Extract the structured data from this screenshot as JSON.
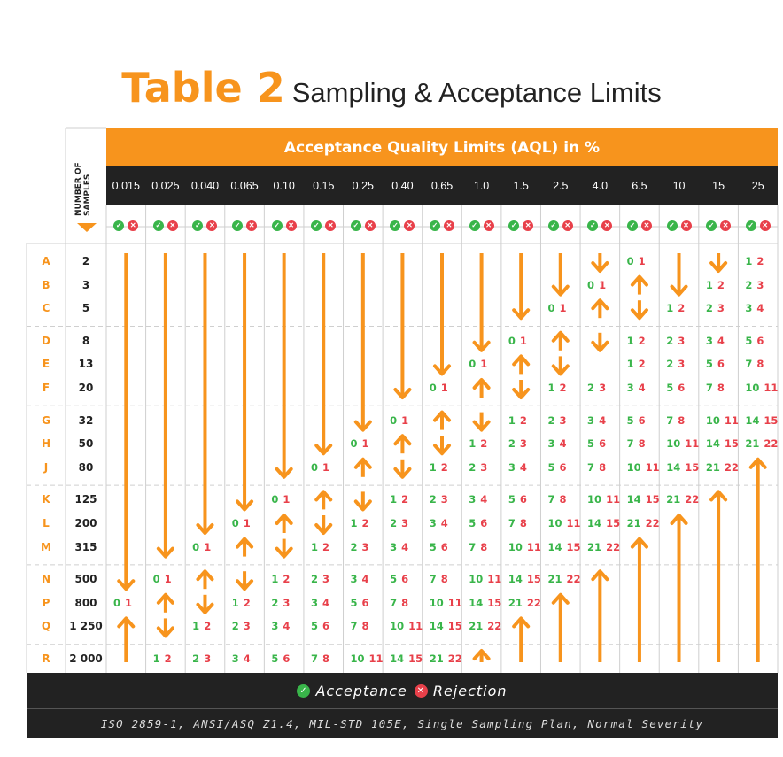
{
  "title": {
    "main": "Table 2",
    "sub": "Sampling & Acceptance Limits"
  },
  "banner": "Acceptance Quality Limits (AQL) in %",
  "number_of_samples_label": "NUMBER OF SAMPLES",
  "aql": [
    "0.015",
    "0.025",
    "0.040",
    "0.065",
    "0.10",
    "0.15",
    "0.25",
    "0.40",
    "0.65",
    "1.0",
    "1.5",
    "2.5",
    "4.0",
    "6.5",
    "10",
    "15",
    "25"
  ],
  "rows": [
    {
      "code": "A",
      "n": "2"
    },
    {
      "code": "B",
      "n": "3"
    },
    {
      "code": "C",
      "n": "5"
    },
    {
      "code": "D",
      "n": "8"
    },
    {
      "code": "E",
      "n": "13"
    },
    {
      "code": "F",
      "n": "20"
    },
    {
      "code": "G",
      "n": "32"
    },
    {
      "code": "H",
      "n": "50"
    },
    {
      "code": "J",
      "n": "80"
    },
    {
      "code": "K",
      "n": "125"
    },
    {
      "code": "L",
      "n": "200"
    },
    {
      "code": "M",
      "n": "315"
    },
    {
      "code": "N",
      "n": "500"
    },
    {
      "code": "P",
      "n": "800"
    },
    {
      "code": "Q",
      "n": "1 250"
    },
    {
      "code": "R",
      "n": "2 000"
    }
  ],
  "pairs": [
    {
      "row": "A",
      "col": "6.5",
      "ac": "0",
      "re": "1"
    },
    {
      "row": "A",
      "col": "25",
      "ac": "1",
      "re": "2"
    },
    {
      "row": "B",
      "col": "4.0",
      "ac": "0",
      "re": "1"
    },
    {
      "row": "B",
      "col": "15",
      "ac": "1",
      "re": "2"
    },
    {
      "row": "B",
      "col": "25",
      "ac": "2",
      "re": "3"
    },
    {
      "row": "C",
      "col": "2.5",
      "ac": "0",
      "re": "1"
    },
    {
      "row": "C",
      "col": "10",
      "ac": "1",
      "re": "2"
    },
    {
      "row": "C",
      "col": "15",
      "ac": "2",
      "re": "3"
    },
    {
      "row": "C",
      "col": "25",
      "ac": "3",
      "re": "4"
    },
    {
      "row": "D",
      "col": "1.5",
      "ac": "0",
      "re": "1"
    },
    {
      "row": "D",
      "col": "6.5",
      "ac": "1",
      "re": "2"
    },
    {
      "row": "D",
      "col": "10",
      "ac": "2",
      "re": "3"
    },
    {
      "row": "D",
      "col": "15",
      "ac": "3",
      "re": "4"
    },
    {
      "row": "D",
      "col": "25",
      "ac": "5",
      "re": "6"
    },
    {
      "row": "E",
      "col": "1.0",
      "ac": "0",
      "re": "1"
    },
    {
      "row": "E",
      "col": "6.5",
      "ac": "1",
      "re": "2"
    },
    {
      "row": "E",
      "col": "10",
      "ac": "2",
      "re": "3"
    },
    {
      "row": "E",
      "col": "15",
      "ac": "5",
      "re": "6"
    },
    {
      "row": "E",
      "col": "25",
      "ac": "7",
      "re": "8"
    },
    {
      "row": "F",
      "col": "0.65",
      "ac": "0",
      "re": "1"
    },
    {
      "row": "F",
      "col": "2.5",
      "ac": "1",
      "re": "2"
    },
    {
      "row": "F",
      "col": "4.0",
      "ac": "2",
      "re": "3"
    },
    {
      "row": "F",
      "col": "6.5",
      "ac": "3",
      "re": "4"
    },
    {
      "row": "F",
      "col": "10",
      "ac": "5",
      "re": "6"
    },
    {
      "row": "F",
      "col": "15",
      "ac": "7",
      "re": "8"
    },
    {
      "row": "F",
      "col": "25",
      "ac": "10",
      "re": "11"
    },
    {
      "row": "G",
      "col": "0.40",
      "ac": "0",
      "re": "1"
    },
    {
      "row": "G",
      "col": "1.5",
      "ac": "1",
      "re": "2"
    },
    {
      "row": "G",
      "col": "2.5",
      "ac": "2",
      "re": "3"
    },
    {
      "row": "G",
      "col": "4.0",
      "ac": "3",
      "re": "4"
    },
    {
      "row": "G",
      "col": "6.5",
      "ac": "5",
      "re": "6"
    },
    {
      "row": "G",
      "col": "10",
      "ac": "7",
      "re": "8"
    },
    {
      "row": "G",
      "col": "15",
      "ac": "10",
      "re": "11"
    },
    {
      "row": "G",
      "col": "25",
      "ac": "14",
      "re": "15"
    },
    {
      "row": "H",
      "col": "0.25",
      "ac": "0",
      "re": "1"
    },
    {
      "row": "H",
      "col": "1.0",
      "ac": "1",
      "re": "2"
    },
    {
      "row": "H",
      "col": "1.5",
      "ac": "2",
      "re": "3"
    },
    {
      "row": "H",
      "col": "2.5",
      "ac": "3",
      "re": "4"
    },
    {
      "row": "H",
      "col": "4.0",
      "ac": "5",
      "re": "6"
    },
    {
      "row": "H",
      "col": "6.5",
      "ac": "7",
      "re": "8"
    },
    {
      "row": "H",
      "col": "10",
      "ac": "10",
      "re": "11"
    },
    {
      "row": "H",
      "col": "15",
      "ac": "14",
      "re": "15"
    },
    {
      "row": "H",
      "col": "25",
      "ac": "21",
      "re": "22"
    },
    {
      "row": "J",
      "col": "0.15",
      "ac": "0",
      "re": "1"
    },
    {
      "row": "J",
      "col": "0.65",
      "ac": "1",
      "re": "2"
    },
    {
      "row": "J",
      "col": "1.0",
      "ac": "2",
      "re": "3"
    },
    {
      "row": "J",
      "col": "1.5",
      "ac": "3",
      "re": "4"
    },
    {
      "row": "J",
      "col": "2.5",
      "ac": "5",
      "re": "6"
    },
    {
      "row": "J",
      "col": "4.0",
      "ac": "7",
      "re": "8"
    },
    {
      "row": "J",
      "col": "6.5",
      "ac": "10",
      "re": "11"
    },
    {
      "row": "J",
      "col": "10",
      "ac": "14",
      "re": "15"
    },
    {
      "row": "J",
      "col": "15",
      "ac": "21",
      "re": "22"
    },
    {
      "row": "K",
      "col": "0.10",
      "ac": "0",
      "re": "1"
    },
    {
      "row": "K",
      "col": "0.40",
      "ac": "1",
      "re": "2"
    },
    {
      "row": "K",
      "col": "0.65",
      "ac": "2",
      "re": "3"
    },
    {
      "row": "K",
      "col": "1.0",
      "ac": "3",
      "re": "4"
    },
    {
      "row": "K",
      "col": "1.5",
      "ac": "5",
      "re": "6"
    },
    {
      "row": "K",
      "col": "2.5",
      "ac": "7",
      "re": "8"
    },
    {
      "row": "K",
      "col": "4.0",
      "ac": "10",
      "re": "11"
    },
    {
      "row": "K",
      "col": "6.5",
      "ac": "14",
      "re": "15"
    },
    {
      "row": "K",
      "col": "10",
      "ac": "21",
      "re": "22"
    },
    {
      "row": "L",
      "col": "0.065",
      "ac": "0",
      "re": "1"
    },
    {
      "row": "L",
      "col": "0.25",
      "ac": "1",
      "re": "2"
    },
    {
      "row": "L",
      "col": "0.40",
      "ac": "2",
      "re": "3"
    },
    {
      "row": "L",
      "col": "0.65",
      "ac": "3",
      "re": "4"
    },
    {
      "row": "L",
      "col": "1.0",
      "ac": "5",
      "re": "6"
    },
    {
      "row": "L",
      "col": "1.5",
      "ac": "7",
      "re": "8"
    },
    {
      "row": "L",
      "col": "2.5",
      "ac": "10",
      "re": "11"
    },
    {
      "row": "L",
      "col": "4.0",
      "ac": "14",
      "re": "15"
    },
    {
      "row": "L",
      "col": "6.5",
      "ac": "21",
      "re": "22"
    },
    {
      "row": "M",
      "col": "0.040",
      "ac": "0",
      "re": "1"
    },
    {
      "row": "M",
      "col": "0.15",
      "ac": "1",
      "re": "2"
    },
    {
      "row": "M",
      "col": "0.25",
      "ac": "2",
      "re": "3"
    },
    {
      "row": "M",
      "col": "0.40",
      "ac": "3",
      "re": "4"
    },
    {
      "row": "M",
      "col": "0.65",
      "ac": "5",
      "re": "6"
    },
    {
      "row": "M",
      "col": "1.0",
      "ac": "7",
      "re": "8"
    },
    {
      "row": "M",
      "col": "1.5",
      "ac": "10",
      "re": "11"
    },
    {
      "row": "M",
      "col": "2.5",
      "ac": "14",
      "re": "15"
    },
    {
      "row": "M",
      "col": "4.0",
      "ac": "21",
      "re": "22"
    },
    {
      "row": "N",
      "col": "0.025",
      "ac": "0",
      "re": "1"
    },
    {
      "row": "N",
      "col": "0.10",
      "ac": "1",
      "re": "2"
    },
    {
      "row": "N",
      "col": "0.15",
      "ac": "2",
      "re": "3"
    },
    {
      "row": "N",
      "col": "0.25",
      "ac": "3",
      "re": "4"
    },
    {
      "row": "N",
      "col": "0.40",
      "ac": "5",
      "re": "6"
    },
    {
      "row": "N",
      "col": "0.65",
      "ac": "7",
      "re": "8"
    },
    {
      "row": "N",
      "col": "1.0",
      "ac": "10",
      "re": "11"
    },
    {
      "row": "N",
      "col": "1.5",
      "ac": "14",
      "re": "15"
    },
    {
      "row": "N",
      "col": "2.5",
      "ac": "21",
      "re": "22"
    },
    {
      "row": "P",
      "col": "0.015",
      "ac": "0",
      "re": "1"
    },
    {
      "row": "P",
      "col": "0.065",
      "ac": "1",
      "re": "2"
    },
    {
      "row": "P",
      "col": "0.10",
      "ac": "2",
      "re": "3"
    },
    {
      "row": "P",
      "col": "0.15",
      "ac": "3",
      "re": "4"
    },
    {
      "row": "P",
      "col": "0.25",
      "ac": "5",
      "re": "6"
    },
    {
      "row": "P",
      "col": "0.40",
      "ac": "7",
      "re": "8"
    },
    {
      "row": "P",
      "col": "0.65",
      "ac": "10",
      "re": "11"
    },
    {
      "row": "P",
      "col": "1.0",
      "ac": "14",
      "re": "15"
    },
    {
      "row": "P",
      "col": "1.5",
      "ac": "21",
      "re": "22"
    },
    {
      "row": "Q",
      "col": "0.040",
      "ac": "1",
      "re": "2"
    },
    {
      "row": "Q",
      "col": "0.065",
      "ac": "2",
      "re": "3"
    },
    {
      "row": "Q",
      "col": "0.10",
      "ac": "3",
      "re": "4"
    },
    {
      "row": "Q",
      "col": "0.15",
      "ac": "5",
      "re": "6"
    },
    {
      "row": "Q",
      "col": "0.25",
      "ac": "7",
      "re": "8"
    },
    {
      "row": "Q",
      "col": "0.40",
      "ac": "10",
      "re": "11"
    },
    {
      "row": "Q",
      "col": "0.65",
      "ac": "14",
      "re": "15"
    },
    {
      "row": "Q",
      "col": "1.0",
      "ac": "21",
      "re": "22"
    },
    {
      "row": "R",
      "col": "0.025",
      "ac": "1",
      "re": "2"
    },
    {
      "row": "R",
      "col": "0.040",
      "ac": "2",
      "re": "3"
    },
    {
      "row": "R",
      "col": "0.065",
      "ac": "3",
      "re": "4"
    },
    {
      "row": "R",
      "col": "0.10",
      "ac": "5",
      "re": "6"
    },
    {
      "row": "R",
      "col": "0.15",
      "ac": "7",
      "re": "8"
    },
    {
      "row": "R",
      "col": "0.25",
      "ac": "10",
      "re": "11"
    },
    {
      "row": "R",
      "col": "0.40",
      "ac": "14",
      "re": "15"
    },
    {
      "row": "R",
      "col": "0.65",
      "ac": "21",
      "re": "22"
    }
  ],
  "arrows": [
    {
      "col": "0.015",
      "dir": "down",
      "from": "A",
      "to": "N"
    },
    {
      "col": "0.015",
      "dir": "up",
      "from": "Q",
      "to": "R"
    },
    {
      "col": "0.025",
      "dir": "down",
      "from": "A",
      "to": "M"
    },
    {
      "col": "0.025",
      "dir": "up",
      "from": "P",
      "to": "P"
    },
    {
      "col": "0.025",
      "dir": "down",
      "from": "Q",
      "to": "Q"
    },
    {
      "col": "0.040",
      "dir": "down",
      "from": "A",
      "to": "L"
    },
    {
      "col": "0.040",
      "dir": "up",
      "from": "N",
      "to": "N"
    },
    {
      "col": "0.040",
      "dir": "down",
      "from": "P",
      "to": "P"
    },
    {
      "col": "0.065",
      "dir": "down",
      "from": "A",
      "to": "K"
    },
    {
      "col": "0.065",
      "dir": "up",
      "from": "M",
      "to": "M"
    },
    {
      "col": "0.065",
      "dir": "down",
      "from": "N",
      "to": "N"
    },
    {
      "col": "0.10",
      "dir": "down",
      "from": "A",
      "to": "J"
    },
    {
      "col": "0.10",
      "dir": "up",
      "from": "L",
      "to": "L"
    },
    {
      "col": "0.10",
      "dir": "down",
      "from": "M",
      "to": "M"
    },
    {
      "col": "0.15",
      "dir": "down",
      "from": "A",
      "to": "H"
    },
    {
      "col": "0.15",
      "dir": "up",
      "from": "K",
      "to": "K"
    },
    {
      "col": "0.15",
      "dir": "down",
      "from": "L",
      "to": "L"
    },
    {
      "col": "0.25",
      "dir": "down",
      "from": "A",
      "to": "G"
    },
    {
      "col": "0.25",
      "dir": "up",
      "from": "J",
      "to": "J"
    },
    {
      "col": "0.25",
      "dir": "down",
      "from": "K",
      "to": "K"
    },
    {
      "col": "0.40",
      "dir": "down",
      "from": "A",
      "to": "F"
    },
    {
      "col": "0.40",
      "dir": "up",
      "from": "H",
      "to": "H"
    },
    {
      "col": "0.40",
      "dir": "down",
      "from": "J",
      "to": "J"
    },
    {
      "col": "0.65",
      "dir": "down",
      "from": "A",
      "to": "E"
    },
    {
      "col": "0.65",
      "dir": "up",
      "from": "G",
      "to": "G"
    },
    {
      "col": "0.65",
      "dir": "down",
      "from": "H",
      "to": "H"
    },
    {
      "col": "1.0",
      "dir": "down",
      "from": "A",
      "to": "D"
    },
    {
      "col": "1.0",
      "dir": "up",
      "from": "F",
      "to": "F"
    },
    {
      "col": "1.0",
      "dir": "down",
      "from": "G",
      "to": "G"
    },
    {
      "col": "1.0",
      "dir": "up",
      "from": "R",
      "to": "R"
    },
    {
      "col": "1.5",
      "dir": "down",
      "from": "A",
      "to": "C"
    },
    {
      "col": "1.5",
      "dir": "up",
      "from": "E",
      "to": "E"
    },
    {
      "col": "1.5",
      "dir": "down",
      "from": "F",
      "to": "F"
    },
    {
      "col": "1.5",
      "dir": "up",
      "from": "Q",
      "to": "R"
    },
    {
      "col": "2.5",
      "dir": "down",
      "from": "A",
      "to": "B"
    },
    {
      "col": "2.5",
      "dir": "up",
      "from": "D",
      "to": "D"
    },
    {
      "col": "2.5",
      "dir": "down",
      "from": "E",
      "to": "E"
    },
    {
      "col": "2.5",
      "dir": "up",
      "from": "P",
      "to": "R"
    },
    {
      "col": "4.0",
      "dir": "down",
      "from": "A",
      "to": "A"
    },
    {
      "col": "4.0",
      "dir": "up",
      "from": "C",
      "to": "C"
    },
    {
      "col": "4.0",
      "dir": "down",
      "from": "D",
      "to": "D"
    },
    {
      "col": "4.0",
      "dir": "up",
      "from": "N",
      "to": "R"
    },
    {
      "col": "6.5",
      "dir": "up",
      "from": "B",
      "to": "B"
    },
    {
      "col": "6.5",
      "dir": "down",
      "from": "C",
      "to": "C"
    },
    {
      "col": "6.5",
      "dir": "up",
      "from": "M",
      "to": "R"
    },
    {
      "col": "10",
      "dir": "down",
      "from": "A",
      "to": "B"
    },
    {
      "col": "10",
      "dir": "up",
      "from": "L",
      "to": "R"
    },
    {
      "col": "15",
      "dir": "down",
      "from": "A",
      "to": "A"
    },
    {
      "col": "15",
      "dir": "up",
      "from": "K",
      "to": "R"
    },
    {
      "col": "25",
      "dir": "up",
      "from": "J",
      "to": "R"
    }
  ],
  "legend": {
    "acceptance": "Acceptance",
    "rejection": "Rejection"
  },
  "footnote": "ISO 2859-1, ANSI/ASQ Z1.4, MIL-STD 105E, Single Sampling Plan, Normal Severity",
  "colors": {
    "accent": "#f7941d",
    "accept": "#39b54a",
    "reject": "#e8404a",
    "dark": "#222222",
    "grid": "#cfcfcf"
  },
  "icons": {
    "accept": "check-circle-icon",
    "reject": "x-circle-icon"
  }
}
